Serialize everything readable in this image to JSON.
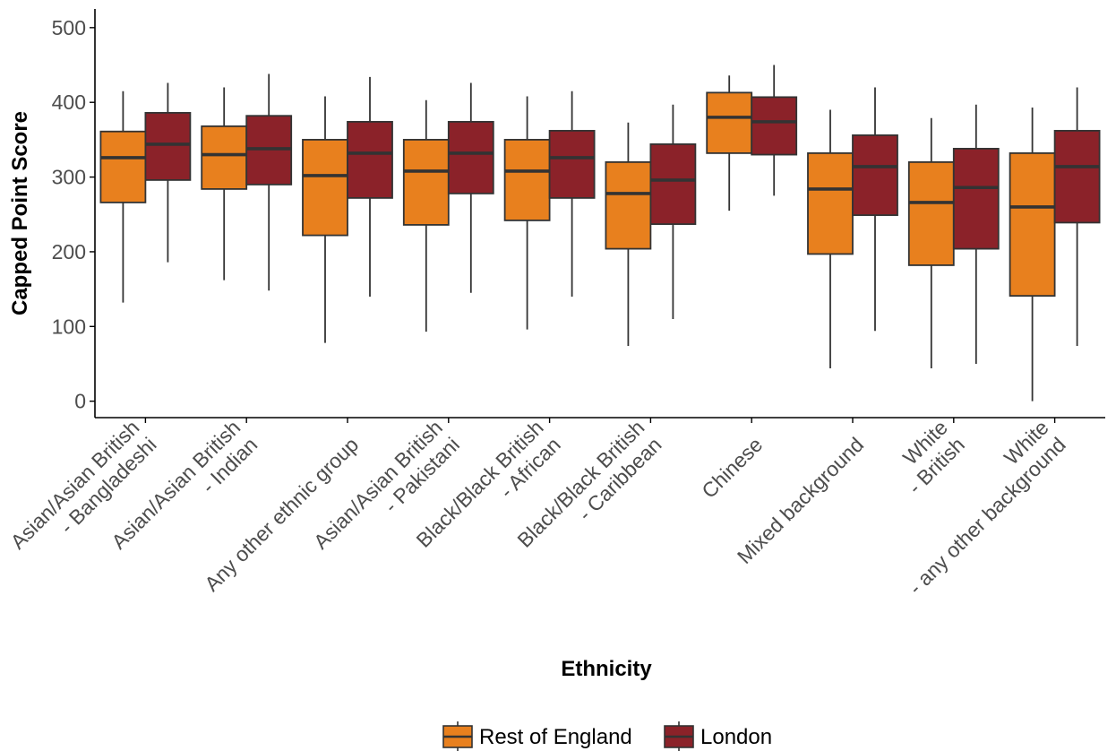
{
  "chart_data": {
    "type": "boxplot",
    "xlabel": "Ethnicity",
    "ylabel": "Capped Point Score",
    "ylim": [
      -22,
      525
    ],
    "yticks": [
      0,
      100,
      200,
      300,
      400,
      500
    ],
    "grid": false,
    "legend_position": "bottom",
    "categories": [
      [
        "Asian/Asian British",
        "- Bangladeshi"
      ],
      [
        "Asian/Asian British",
        "- Indian"
      ],
      [
        "Any other ethnic group"
      ],
      [
        "Asian/Asian British",
        "- Pakistani"
      ],
      [
        "Black/Black British",
        "- African"
      ],
      [
        "Black/Black British",
        "- Caribbean"
      ],
      [
        "Chinese"
      ],
      [
        "Mixed background"
      ],
      [
        "White",
        "- British"
      ],
      [
        "White",
        "- any other background"
      ]
    ],
    "series": [
      {
        "name": "Rest of England",
        "color": "#E8801E",
        "boxes": [
          {
            "min": 132,
            "q1": 266,
            "median": 326,
            "q3": 361,
            "max": 415
          },
          {
            "min": 162,
            "q1": 284,
            "median": 330,
            "q3": 368,
            "max": 420
          },
          {
            "min": 78,
            "q1": 222,
            "median": 302,
            "q3": 350,
            "max": 408
          },
          {
            "min": 93,
            "q1": 236,
            "median": 308,
            "q3": 350,
            "max": 403
          },
          {
            "min": 96,
            "q1": 242,
            "median": 308,
            "q3": 350,
            "max": 408
          },
          {
            "min": 74,
            "q1": 204,
            "median": 278,
            "q3": 320,
            "max": 373
          },
          {
            "min": 255,
            "q1": 332,
            "median": 380,
            "q3": 413,
            "max": 436
          },
          {
            "min": 44,
            "q1": 197,
            "median": 284,
            "q3": 332,
            "max": 390
          },
          {
            "min": 44,
            "q1": 182,
            "median": 266,
            "q3": 320,
            "max": 379
          },
          {
            "min": 0,
            "q1": 141,
            "median": 260,
            "q3": 332,
            "max": 393
          }
        ]
      },
      {
        "name": "London",
        "color": "#8B2229",
        "boxes": [
          {
            "min": 186,
            "q1": 296,
            "median": 344,
            "q3": 386,
            "max": 426
          },
          {
            "min": 148,
            "q1": 290,
            "median": 338,
            "q3": 382,
            "max": 438
          },
          {
            "min": 140,
            "q1": 272,
            "median": 332,
            "q3": 374,
            "max": 434
          },
          {
            "min": 145,
            "q1": 278,
            "median": 332,
            "q3": 374,
            "max": 426
          },
          {
            "min": 140,
            "q1": 272,
            "median": 326,
            "q3": 362,
            "max": 415
          },
          {
            "min": 110,
            "q1": 237,
            "median": 296,
            "q3": 344,
            "max": 397
          },
          {
            "min": 275,
            "q1": 330,
            "median": 374,
            "q3": 407,
            "max": 450
          },
          {
            "min": 94,
            "q1": 249,
            "median": 314,
            "q3": 356,
            "max": 420
          },
          {
            "min": 50,
            "q1": 204,
            "median": 286,
            "q3": 338,
            "max": 397
          },
          {
            "min": 74,
            "q1": 239,
            "median": 314,
            "q3": 362,
            "max": 420
          }
        ]
      }
    ]
  }
}
